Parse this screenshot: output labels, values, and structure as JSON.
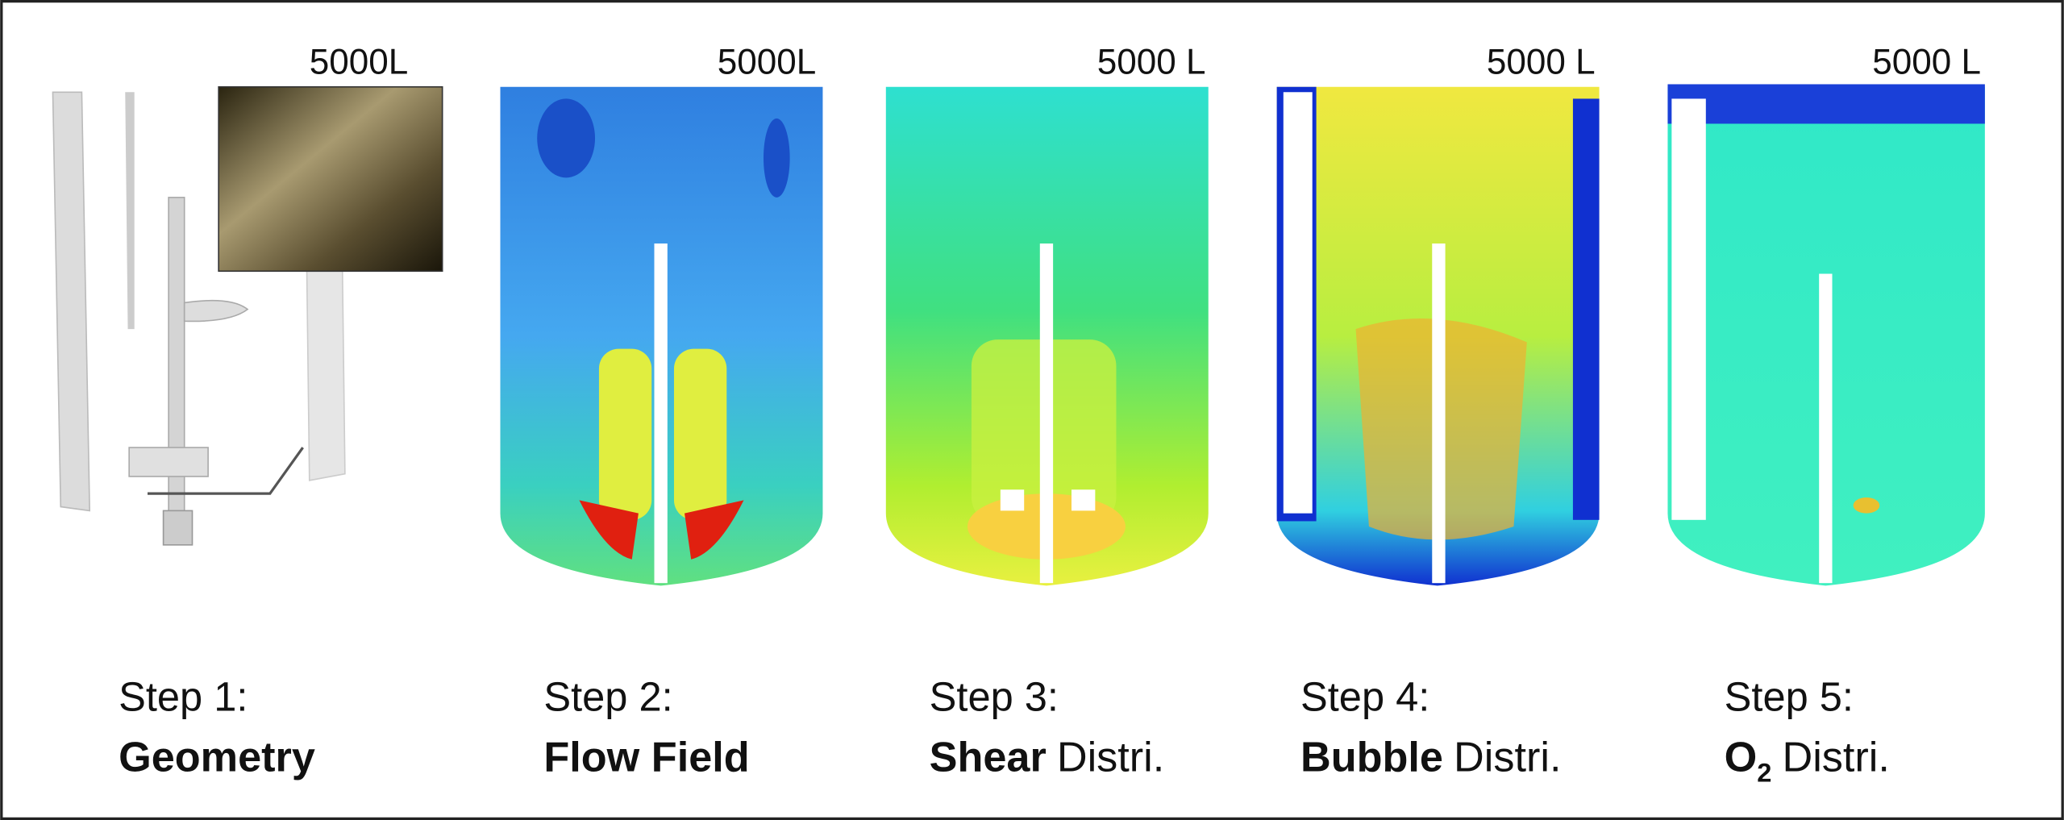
{
  "panels": [
    {
      "volume": "5000L",
      "step": "Step 1:",
      "title": {
        "bold": "Geometry"
      }
    },
    {
      "volume": "5000L",
      "step": "Step 2:",
      "title": {
        "bold": "Flow Field"
      }
    },
    {
      "volume": "5000 L",
      "step": "Step 3:",
      "title": {
        "bold": "Shear",
        "rest": "Distri."
      }
    },
    {
      "volume": "5000 L",
      "step": "Step 4:",
      "title": {
        "bold": "Bubble",
        "rest": "Distri."
      }
    },
    {
      "volume": "5000 L",
      "step": "Step 5:",
      "title": {
        "bold": "O",
        "sub": "2",
        "rest": "Distri."
      }
    }
  ]
}
